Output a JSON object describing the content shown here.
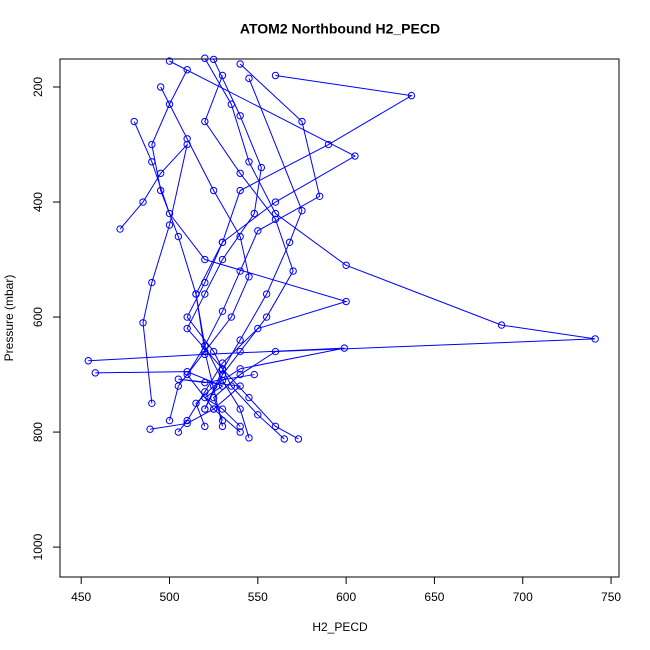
{
  "chart_data": {
    "type": "line",
    "title": "ATOM2 Northbound H2_PECD",
    "x_label": "H2_PECD",
    "y_label": "Pressure (mbar)",
    "color": "#0000ff",
    "markers": "open-circle",
    "xlim": [
      438,
      754.5
    ],
    "ylim": [
      1052,
      151.3
    ],
    "xticks": [
      450,
      500,
      550,
      600,
      650,
      700,
      750
    ],
    "yticks": [
      200,
      400,
      600,
      800,
      1000
    ],
    "series": [
      {
        "x": [
          520,
          535,
          545,
          560,
          600,
          688,
          741,
          560,
          540,
          525,
          530
        ],
        "y": [
          150,
          230,
          330,
          420,
          510,
          614,
          638,
          660,
          700,
          740,
          780
        ]
      },
      {
        "x": [
          560,
          637,
          590,
          540,
          530,
          515,
          520,
          530,
          540,
          545
        ],
        "y": [
          180,
          215,
          300,
          380,
          470,
          560,
          650,
          710,
          760,
          810
        ]
      },
      {
        "x": [
          500,
          605,
          560,
          530,
          520,
          510,
          525,
          535,
          550,
          565
        ],
        "y": [
          155,
          320,
          400,
          470,
          540,
          600,
          660,
          720,
          770,
          812
        ]
      },
      {
        "x": [
          480,
          490,
          500,
          520,
          600,
          550,
          530,
          520,
          510,
          505
        ],
        "y": [
          260,
          330,
          420,
          500,
          573,
          620,
          680,
          730,
          780,
          800
        ]
      },
      {
        "x": [
          454,
          520,
          599,
          540,
          525,
          515,
          520
        ],
        "y": [
          676,
          665,
          654,
          690,
          720,
          750,
          790
        ]
      },
      {
        "x": [
          458,
          510,
          530,
          520,
          530,
          540
        ],
        "y": [
          697,
          695,
          720,
          740,
          760,
          790
        ]
      },
      {
        "x": [
          472,
          485,
          495,
          510,
          500,
          490,
          485,
          490
        ],
        "y": [
          447,
          400,
          350,
          300,
          440,
          540,
          610,
          750
        ]
      },
      {
        "x": [
          540,
          575,
          585,
          550,
          540,
          530,
          520,
          510,
          525,
          540
        ],
        "y": [
          160,
          260,
          390,
          450,
          520,
          590,
          650,
          700,
          760,
          800
        ]
      },
      {
        "x": [
          510,
          500,
          490,
          495,
          505,
          515,
          520,
          530
        ],
        "y": [
          170,
          230,
          300,
          380,
          460,
          560,
          660,
          790
        ]
      },
      {
        "x": [
          530,
          520,
          540,
          560,
          570,
          555,
          540,
          530,
          520
        ],
        "y": [
          180,
          260,
          350,
          430,
          520,
          600,
          660,
          700,
          760
        ]
      },
      {
        "x": [
          495,
          510,
          525,
          540,
          545,
          535,
          520,
          505,
          500
        ],
        "y": [
          200,
          290,
          380,
          460,
          530,
          600,
          660,
          720,
          780
        ]
      },
      {
        "x": [
          525,
          540,
          552,
          548,
          530,
          520,
          510,
          530,
          545,
          560,
          573
        ],
        "y": [
          152,
          250,
          340,
          420,
          500,
          560,
          620,
          690,
          740,
          790,
          812
        ]
      },
      {
        "x": [
          545,
          575,
          568,
          555,
          540,
          530,
          520
        ],
        "y": [
          185,
          415,
          470,
          560,
          640,
          692,
          760
        ]
      },
      {
        "x": [
          489,
          510,
          525,
          540,
          505,
          520,
          548
        ],
        "y": [
          795,
          785,
          760,
          720,
          708,
          714,
          700
        ]
      }
    ]
  }
}
